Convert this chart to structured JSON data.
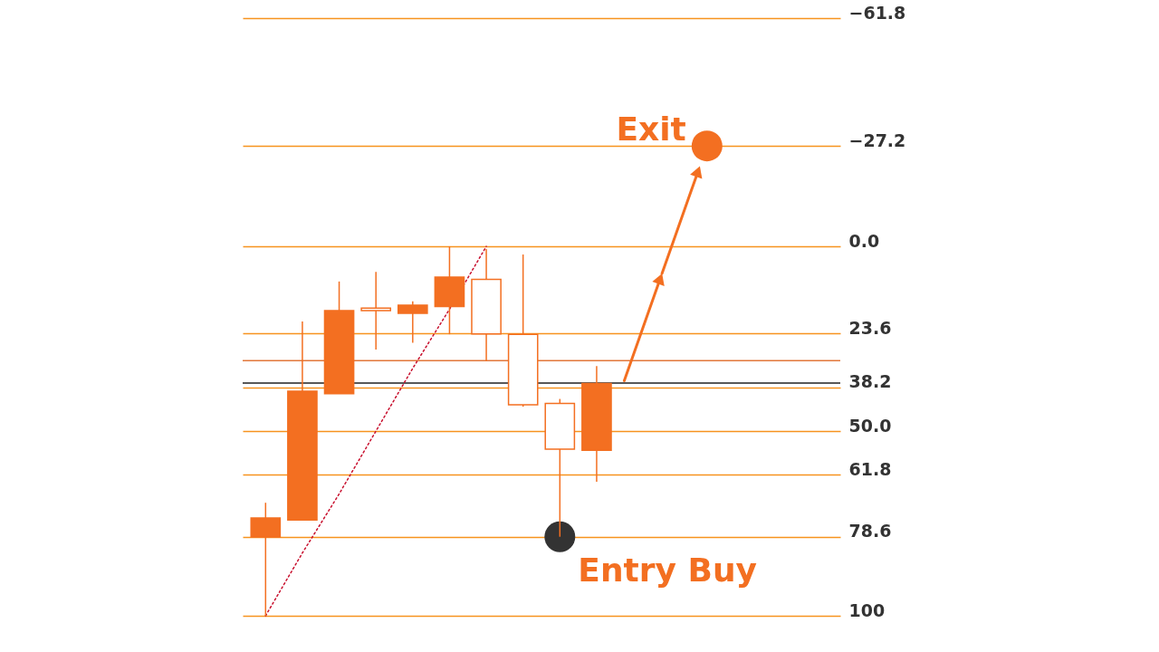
{
  "chart_data": {
    "type": "candlestick",
    "categories": [
      null,
      null,
      null,
      null,
      null,
      null,
      null,
      null,
      null,
      null,
      null,
      null,
      null,
      null,
      null,
      null
    ],
    "color": "#f36f21",
    "ohlc": [
      [
        78.7,
        100,
        69.4,
        73.5
      ],
      [
        74.1,
        74.1,
        20.3,
        39.2
      ],
      [
        39.9,
        39.9,
        9.5,
        17.4
      ],
      [
        16.7,
        27.9,
        6.9,
        17.4
      ],
      [
        18.1,
        26.1,
        14.9,
        15.9
      ],
      [
        16.3,
        23.8,
        0,
        8.3
      ],
      [
        8.9,
        31.1,
        0.7,
        23.7
      ],
      [
        23.8,
        43.4,
        2.2,
        42.9
      ],
      [
        42.5,
        78.6,
        41.3,
        54.9
      ],
      [
        55.2,
        63.7,
        32.4,
        37.1
      ],
      null,
      null,
      null,
      null,
      null,
      null
    ],
    "ylim": [
      100,
      -61.8
    ],
    "yticks": [
      -61.8,
      -27.2,
      {
        "value": 0,
        "label": "0.0"
      },
      23.6,
      38.2,
      {
        "value": 50,
        "label": "50.0"
      },
      61.8,
      78.6,
      100
    ],
    "grid": "y",
    "tick_labels": "y",
    "ref_lines": [
      {
        "axis": "y",
        "value": 30.9,
        "color": "#e2773a"
      },
      {
        "axis": "y",
        "value": 37.0,
        "color": "#222222"
      }
    ],
    "series": [
      {
        "type": "line",
        "color": "#c8102e",
        "line_style": "dotted",
        "values": [
          100,
          83,
          67,
          50,
          33,
          17,
          0,
          null,
          null,
          null,
          null,
          null,
          null,
          null,
          null,
          null
        ]
      },
      {
        "name": "Entry Buy",
        "type": "scatter",
        "color": "#333333",
        "marker": "circle",
        "values": [
          null,
          null,
          null,
          null,
          null,
          null,
          null,
          null,
          78.6,
          null,
          null,
          null,
          null,
          null,
          null,
          null
        ]
      },
      {
        "name": "Exit",
        "type": "scatter",
        "color": "#f36f21",
        "marker": "circle",
        "values": [
          null,
          null,
          null,
          null,
          null,
          null,
          null,
          null,
          null,
          null,
          null,
          null,
          -27.2,
          null,
          null,
          null
        ]
      }
    ]
  }
}
